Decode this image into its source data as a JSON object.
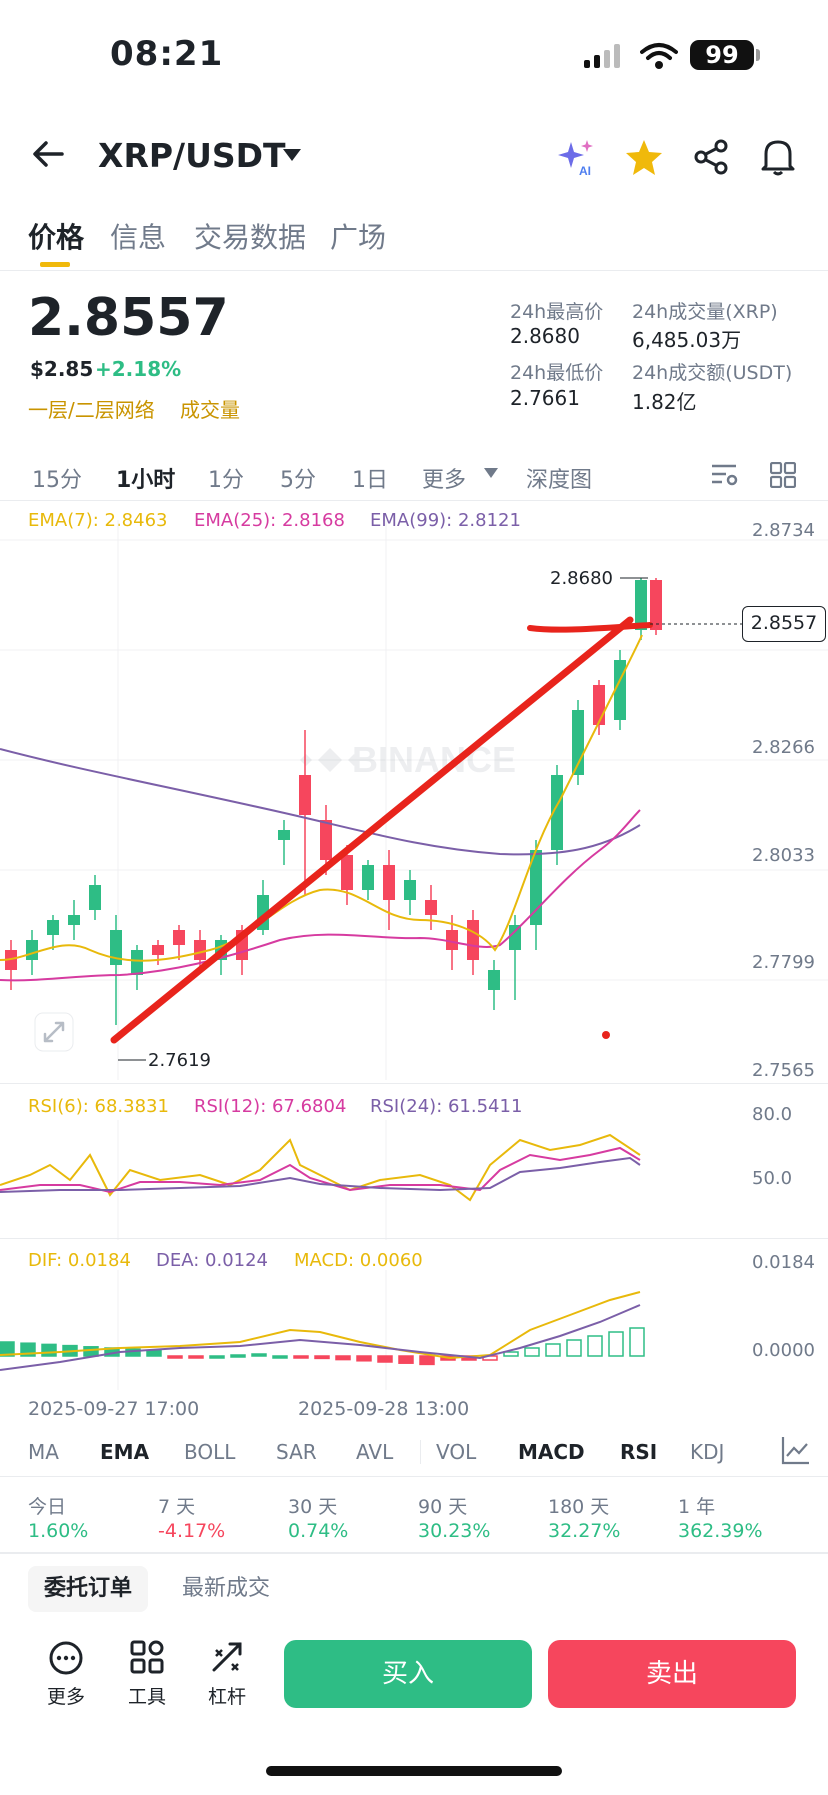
{
  "status_bar": {
    "time": "08:21",
    "battery": "99"
  },
  "header": {
    "pair": "XRP/USDT"
  },
  "tabs": [
    "价格",
    "信息",
    "交易数据",
    "广场"
  ],
  "price": {
    "last": "2.8557",
    "usd": "$2.85",
    "change": "+2.18%",
    "link_network": "一层/二层网络",
    "link_volume": "成交量"
  },
  "stats": {
    "high_label": "24h最高价",
    "high_value": "2.8680",
    "vol_label": "24h成交量(XRP)",
    "vol_value": "6,485.03万",
    "low_label": "24h最低价",
    "low_value": "2.7661",
    "amount_label": "24h成交额(USDT)",
    "amount_value": "1.82亿"
  },
  "intervals": [
    "15分",
    "1小时",
    "1分",
    "5分",
    "1日",
    "更多",
    "深度图"
  ],
  "ema_legend": {
    "ema7": "EMA(7): 2.8463",
    "ema25": "EMA(25): 2.8168",
    "ema99": "EMA(99): 2.8121"
  },
  "price_axis": [
    "2.8734",
    "2.8266",
    "2.8033",
    "2.7799",
    "2.7565"
  ],
  "chart_labels": {
    "high": "2.8680",
    "low": "2.7619",
    "current": "2.8557",
    "watermark": "BINANCE"
  },
  "rsi_legend": {
    "rsi6": "RSI(6): 68.3831",
    "rsi12": "RSI(12): 67.6804",
    "rsi24": "RSI(24): 61.5411"
  },
  "rsi_axis": [
    "80.0",
    "50.0"
  ],
  "macd_legend": {
    "dif": "DIF: 0.0184",
    "dea": "DEA: 0.0124",
    "macd": "MACD: 0.0060"
  },
  "macd_axis": [
    "0.0184",
    "0.0000"
  ],
  "time_axis": [
    "2025-09-27 17:00",
    "2025-09-28 13:00"
  ],
  "indicator_tabs": [
    "MA",
    "EMA",
    "BOLL",
    "SAR",
    "AVL",
    "VOL",
    "MACD",
    "RSI",
    "KDJ"
  ],
  "performance": [
    {
      "label": "今日",
      "value": "1.60%"
    },
    {
      "label": "7 天",
      "value": "-4.17%"
    },
    {
      "label": "30 天",
      "value": "0.74%"
    },
    {
      "label": "90 天",
      "value": "30.23%"
    },
    {
      "label": "180 天",
      "value": "32.27%"
    },
    {
      "label": "1 年",
      "value": "362.39%"
    }
  ],
  "order_tabs": {
    "open_orders": "委托订单",
    "trades": "最新成交"
  },
  "tools": {
    "more": "更多",
    "tools": "工具",
    "leverage": "杠杆"
  },
  "actions": {
    "buy": "买入",
    "sell": "卖出"
  },
  "colors": {
    "up": "#2ebd85",
    "down": "#f6465d",
    "accent": "#f0b90b",
    "ema7": "#e8b90b",
    "ema25": "#d63ba0",
    "ema99": "#7b5fa8"
  }
}
